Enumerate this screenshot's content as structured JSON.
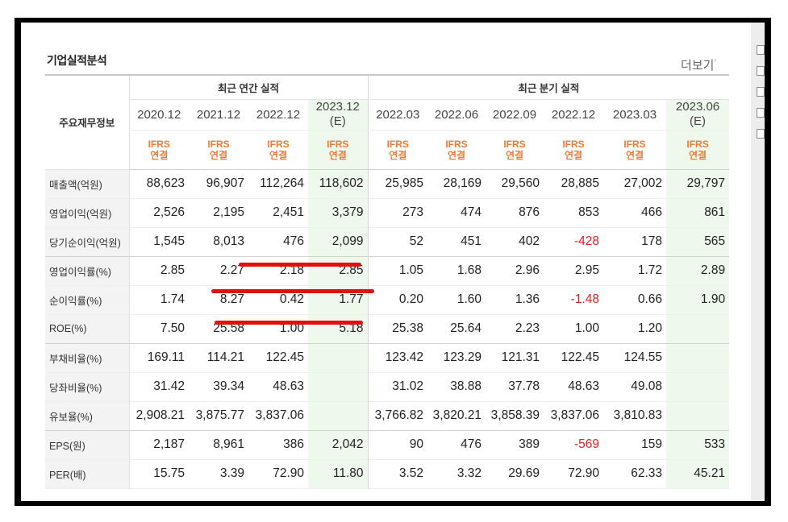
{
  "section_title": "기업실적분석",
  "more_label": "더보기",
  "table": {
    "row_header": "주요재무정보",
    "groups": [
      "최근 연간 실적",
      "최근 분기 실적"
    ],
    "periods": [
      {
        "label": "2020.12",
        "est": ""
      },
      {
        "label": "2021.12",
        "est": ""
      },
      {
        "label": "2022.12",
        "est": ""
      },
      {
        "label": "2023.12",
        "est": "(E)"
      },
      {
        "label": "2022.03",
        "est": ""
      },
      {
        "label": "2022.06",
        "est": ""
      },
      {
        "label": "2022.09",
        "est": ""
      },
      {
        "label": "2022.12",
        "est": ""
      },
      {
        "label": "2023.03",
        "est": ""
      },
      {
        "label": "2023.06",
        "est": "(E)"
      }
    ],
    "ifrs": [
      "IFRS",
      "연결"
    ],
    "rows": [
      {
        "label": "매출액(억원)",
        "values": [
          "88,623",
          "96,907",
          "112,264",
          "118,602",
          "25,985",
          "28,169",
          "29,560",
          "28,885",
          "27,002",
          "29,797"
        ]
      },
      {
        "label": "영업이익(억원)",
        "values": [
          "2,526",
          "2,195",
          "2,451",
          "3,379",
          "273",
          "474",
          "876",
          "853",
          "466",
          "861"
        ]
      },
      {
        "label": "당기순이익(억원)",
        "values": [
          "1,545",
          "8,013",
          "476",
          "2,099",
          "52",
          "451",
          "402",
          "-428",
          "178",
          "565"
        ]
      },
      {
        "label": "영업이익률(%)",
        "values": [
          "2.85",
          "2.27",
          "2.18",
          "2.85",
          "1.05",
          "1.68",
          "2.96",
          "2.95",
          "1.72",
          "2.89"
        ]
      },
      {
        "label": "순이익률(%)",
        "values": [
          "1.74",
          "8.27",
          "0.42",
          "1.77",
          "0.20",
          "1.60",
          "1.36",
          "-1.48",
          "0.66",
          "1.90"
        ]
      },
      {
        "label": "ROE(%)",
        "values": [
          "7.50",
          "25.58",
          "1.00",
          "5.18",
          "25.38",
          "25.64",
          "2.23",
          "1.00",
          "1.20",
          ""
        ]
      },
      {
        "label": "부채비율(%)",
        "values": [
          "169.11",
          "114.21",
          "122.45",
          "",
          "123.42",
          "123.29",
          "121.31",
          "122.45",
          "124.55",
          ""
        ]
      },
      {
        "label": "당좌비율(%)",
        "values": [
          "31.42",
          "39.34",
          "48.63",
          "",
          "31.02",
          "38.88",
          "37.78",
          "48.63",
          "49.08",
          ""
        ]
      },
      {
        "label": "유보율(%)",
        "values": [
          "2,908.21",
          "3,875.77",
          "3,837.06",
          "",
          "3,766.82",
          "3,820.21",
          "3,858.39",
          "3,837.06",
          "3,810.83",
          ""
        ]
      },
      {
        "label": "EPS(원)",
        "values": [
          "2,187",
          "8,961",
          "386",
          "2,042",
          "90",
          "476",
          "389",
          "-569",
          "159",
          "533"
        ]
      },
      {
        "label": "PER(배)",
        "values": [
          "15.75",
          "3.39",
          "72.90",
          "11.80",
          "3.52",
          "3.32",
          "29.69",
          "72.90",
          "62.33",
          "45.21"
        ]
      }
    ]
  }
}
